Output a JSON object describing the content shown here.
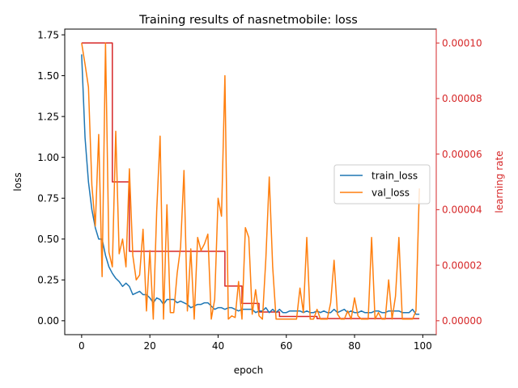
{
  "chart_data": {
    "type": "line",
    "title": "Training results of nasnetmobile: loss",
    "xlabel": "epoch",
    "ylabel": "loss",
    "y2label": "learning rate",
    "xlim": [
      -4.95,
      103.95
    ],
    "ylim": [
      -0.085,
      1.785
    ],
    "y2lim": [
      -5e-06,
      0.000105
    ],
    "xticks": [
      0,
      20,
      40,
      60,
      80,
      100
    ],
    "xtick_labels": [
      "0",
      "20",
      "40",
      "60",
      "80",
      "100"
    ],
    "yticks": [
      0.0,
      0.25,
      0.5,
      0.75,
      1.0,
      1.25,
      1.5,
      1.75
    ],
    "ytick_labels": [
      "0.00",
      "0.25",
      "0.50",
      "0.75",
      "1.00",
      "1.25",
      "1.50",
      "1.75"
    ],
    "y2ticks": [
      0.0,
      2e-05,
      4e-05,
      6e-05,
      8e-05,
      0.0001
    ],
    "y2tick_labels": [
      "0.00000",
      "0.00002",
      "0.00004",
      "0.00006",
      "0.00008",
      "0.00010"
    ],
    "grid": false,
    "legend": {
      "placement": "center-right",
      "entries": [
        "train_loss",
        "val_loss"
      ]
    },
    "colors": {
      "train_loss": "#1f77b4",
      "val_loss": "#ff7f0e",
      "lr": "#d62728",
      "y2_axis": "#d62728"
    },
    "x": [
      0,
      1,
      2,
      3,
      4,
      5,
      6,
      7,
      8,
      9,
      10,
      11,
      12,
      13,
      14,
      15,
      16,
      17,
      18,
      19,
      20,
      21,
      22,
      23,
      24,
      25,
      26,
      27,
      28,
      29,
      30,
      31,
      32,
      33,
      34,
      35,
      36,
      37,
      38,
      39,
      40,
      41,
      42,
      43,
      44,
      45,
      46,
      47,
      48,
      49,
      50,
      51,
      52,
      53,
      54,
      55,
      56,
      57,
      58,
      59,
      60,
      61,
      62,
      63,
      64,
      65,
      66,
      67,
      68,
      69,
      70,
      71,
      72,
      73,
      74,
      75,
      76,
      77,
      78,
      79,
      80,
      81,
      82,
      83,
      84,
      85,
      86,
      87,
      88,
      89,
      90,
      91,
      92,
      93,
      94,
      95,
      96,
      97,
      98,
      99
    ],
    "series": [
      {
        "name": "train_loss",
        "axis": "left",
        "values": [
          1.63,
          1.12,
          0.85,
          0.68,
          0.57,
          0.5,
          0.5,
          0.4,
          0.33,
          0.29,
          0.26,
          0.24,
          0.21,
          0.23,
          0.21,
          0.16,
          0.17,
          0.18,
          0.16,
          0.16,
          0.14,
          0.11,
          0.14,
          0.13,
          0.1,
          0.13,
          0.13,
          0.13,
          0.11,
          0.12,
          0.11,
          0.1,
          0.08,
          0.09,
          0.1,
          0.1,
          0.11,
          0.11,
          0.09,
          0.07,
          0.08,
          0.08,
          0.07,
          0.08,
          0.08,
          0.07,
          0.06,
          0.07,
          0.07,
          0.07,
          0.07,
          0.05,
          0.06,
          0.06,
          0.08,
          0.05,
          0.07,
          0.05,
          0.07,
          0.05,
          0.05,
          0.06,
          0.06,
          0.06,
          0.06,
          0.05,
          0.06,
          0.05,
          0.05,
          0.06,
          0.05,
          0.06,
          0.05,
          0.05,
          0.07,
          0.05,
          0.06,
          0.07,
          0.05,
          0.06,
          0.05,
          0.05,
          0.06,
          0.05,
          0.05,
          0.05,
          0.06,
          0.06,
          0.05,
          0.05,
          0.06,
          0.06,
          0.06,
          0.06,
          0.05,
          0.05,
          0.05,
          0.07,
          0.04,
          0.04
        ]
      },
      {
        "name": "val_loss",
        "axis": "left",
        "values": [
          1.7,
          1.57,
          1.43,
          0.83,
          0.58,
          1.14,
          0.27,
          1.7,
          0.42,
          0.33,
          1.16,
          0.41,
          0.5,
          0.33,
          0.93,
          0.4,
          0.25,
          0.28,
          0.56,
          0.06,
          0.43,
          0.01,
          0.67,
          1.13,
          0.01,
          0.71,
          0.05,
          0.05,
          0.29,
          0.45,
          0.92,
          0.06,
          0.44,
          0.01,
          0.51,
          0.43,
          0.47,
          0.53,
          0.01,
          0.13,
          0.75,
          0.64,
          1.5,
          0.01,
          0.03,
          0.02,
          0.24,
          0.01,
          0.57,
          0.51,
          0.04,
          0.19,
          0.03,
          0.01,
          0.38,
          0.88,
          0.33,
          0.01,
          0.01,
          0.01,
          0.01,
          0.01,
          0.01,
          0.01,
          0.2,
          0.05,
          0.51,
          0.01,
          0.01,
          0.07,
          0.01,
          0.01,
          0.01,
          0.11,
          0.37,
          0.04,
          0.01,
          0.01,
          0.06,
          0.01,
          0.14,
          0.03,
          0.01,
          0.01,
          0.01,
          0.51,
          0.01,
          0.05,
          0.01,
          0.01,
          0.25,
          0.01,
          0.15,
          0.51,
          0.01,
          0.01,
          0.01,
          0.01,
          0.06,
          0.81
        ]
      },
      {
        "name": "learning_rate",
        "axis": "right",
        "values": [
          0.0001,
          0.0001,
          0.0001,
          0.0001,
          0.0001,
          0.0001,
          0.0001,
          0.0001,
          0.0001,
          5e-05,
          5e-05,
          5e-05,
          5e-05,
          5e-05,
          2.5e-05,
          2.5e-05,
          2.5e-05,
          2.5e-05,
          2.5e-05,
          2.5e-05,
          2.5e-05,
          2.5e-05,
          2.5e-05,
          2.5e-05,
          2.5e-05,
          2.5e-05,
          2.5e-05,
          2.5e-05,
          2.5e-05,
          2.5e-05,
          2.5e-05,
          2.5e-05,
          2.5e-05,
          2.5e-05,
          2.5e-05,
          2.5e-05,
          2.5e-05,
          2.5e-05,
          2.5e-05,
          2.5e-05,
          2.5e-05,
          2.5e-05,
          1.25e-05,
          1.25e-05,
          1.25e-05,
          1.25e-05,
          1.25e-05,
          6.25e-06,
          6.25e-06,
          6.25e-06,
          6.25e-06,
          6.25e-06,
          3.13e-06,
          3.13e-06,
          3.13e-06,
          3.13e-06,
          3.13e-06,
          3.13e-06,
          1.56e-06,
          1.56e-06,
          1.56e-06,
          1.56e-06,
          1.56e-06,
          1.56e-06,
          1.56e-06,
          1.56e-06,
          1.56e-06,
          1.56e-06,
          1.56e-06,
          7.8e-07,
          7.8e-07,
          7.8e-07,
          7.8e-07,
          7.8e-07,
          7.8e-07,
          7.8e-07,
          7.8e-07,
          7.8e-07,
          7.8e-07,
          7.8e-07,
          7.8e-07,
          7.8e-07,
          7.8e-07,
          7.8e-07,
          7.8e-07,
          7.8e-07,
          7.8e-07,
          7.8e-07,
          7.8e-07,
          7.8e-07,
          7.8e-07,
          7.8e-07,
          7.8e-07,
          7.8e-07,
          7.8e-07,
          7.8e-07,
          7.8e-07,
          7.8e-07,
          7.8e-07,
          7.8e-07
        ]
      }
    ]
  }
}
